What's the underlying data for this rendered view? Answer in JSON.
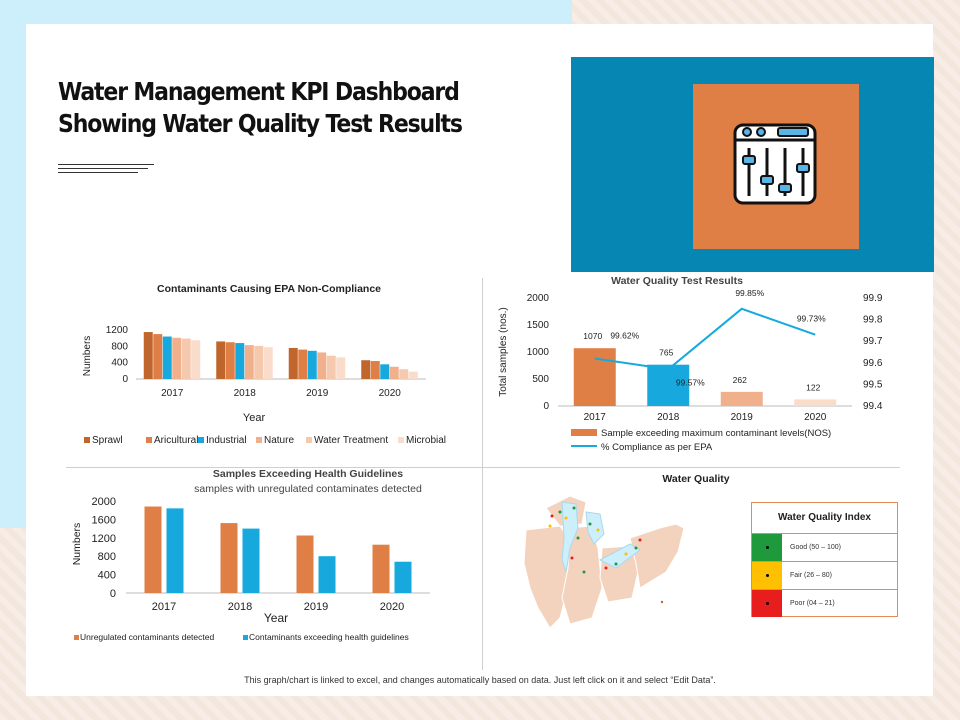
{
  "page": {
    "title": "Water Management KPI Dashboard Showing Water Quality Test Results",
    "footer": "This graph/chart is linked to excel, and changes automatically based on data. Just left click on it and select “Edit Data”.",
    "hero_icon": "mixer-sliders-icon",
    "colors": {
      "hero_bg": "#0586b3",
      "hero_box": "#e07f45"
    }
  },
  "chart_data": [
    {
      "id": "contaminants",
      "type": "bar",
      "title": "Contaminants Causing EPA Non-Compliance",
      "xlabel": "Year",
      "ylabel": "Numbers",
      "categories": [
        "2017",
        "2018",
        "2019",
        "2020"
      ],
      "ylim": [
        0,
        1200
      ],
      "yticks": [
        0,
        400,
        800,
        1200
      ],
      "series": [
        {
          "name": "Sprawl",
          "color": "#c0662d",
          "values": [
            1150,
            920,
            760,
            460
          ]
        },
        {
          "name": "Aricultural",
          "color": "#e07f45",
          "values": [
            1100,
            900,
            720,
            440
          ]
        },
        {
          "name": "Industrial",
          "color": "#17a9de",
          "values": [
            1040,
            880,
            690,
            360
          ]
        },
        {
          "name": "Nature",
          "color": "#f0b08c",
          "values": [
            1010,
            830,
            650,
            300
          ]
        },
        {
          "name": "Water Treatment",
          "color": "#f5c9ad",
          "values": [
            990,
            810,
            570,
            240
          ]
        },
        {
          "name": "Microbial",
          "color": "#fadccb",
          "values": [
            950,
            780,
            530,
            180
          ]
        }
      ]
    },
    {
      "id": "test_results",
      "type": "bar+line",
      "title": "Water Quality Test Results",
      "ylabel": "Total samples (nos.)",
      "categories": [
        "2017",
        "2018",
        "2019",
        "2020"
      ],
      "ylim": [
        0,
        2000
      ],
      "yticks": [
        0,
        500,
        1000,
        1500,
        2000
      ],
      "y2lim": [
        99.4,
        99.9
      ],
      "y2ticks": [
        "99.4",
        "99.5",
        "99.6",
        "99.7",
        "99.8",
        "99.9"
      ],
      "bar_series": {
        "name": "Sample exceeding maximum contaminant levels(NOS)",
        "values": [
          1070,
          765,
          262,
          122
        ],
        "colors": [
          "#e07f45",
          "#17a9de",
          "#f0b08c",
          "#fadccb"
        ],
        "labels": [
          "1070",
          "765",
          "262",
          "122"
        ]
      },
      "line_series": {
        "name": "% Compliance as per EPA",
        "color": "#17a9de",
        "values": [
          99.62,
          99.57,
          99.85,
          99.73
        ],
        "labels": [
          "99.62%",
          "99.57%",
          "99.85%",
          "99.73%"
        ]
      }
    },
    {
      "id": "health",
      "type": "bar",
      "title": "Samples Exceeding Health Guidelines",
      "subtitle": "samples with unregulated contaminates detected",
      "xlabel": "Year",
      "ylabel": "Numbers",
      "categories": [
        "2017",
        "2018",
        "2019",
        "2020"
      ],
      "ylim": [
        0,
        2000
      ],
      "yticks": [
        0,
        400,
        800,
        1200,
        1600,
        2000
      ],
      "series": [
        {
          "name": "Unregulated contaminants detected",
          "color": "#e07f45",
          "values": [
            1880,
            1520,
            1250,
            1050
          ]
        },
        {
          "name": "Contaminants exceeding health guidelines",
          "color": "#17a9de",
          "values": [
            1840,
            1400,
            800,
            680
          ]
        }
      ]
    }
  ],
  "map": {
    "title": "Water Quality",
    "legend_title": "Water Quality Index",
    "legend": [
      {
        "label": "Good  (50 – 100)",
        "color": "#1e9a3c"
      },
      {
        "label": "Fair  (26 – 80)",
        "color": "#ffc000"
      },
      {
        "label": "Poor  (04 – 21)",
        "color": "#e81e1e"
      }
    ]
  }
}
